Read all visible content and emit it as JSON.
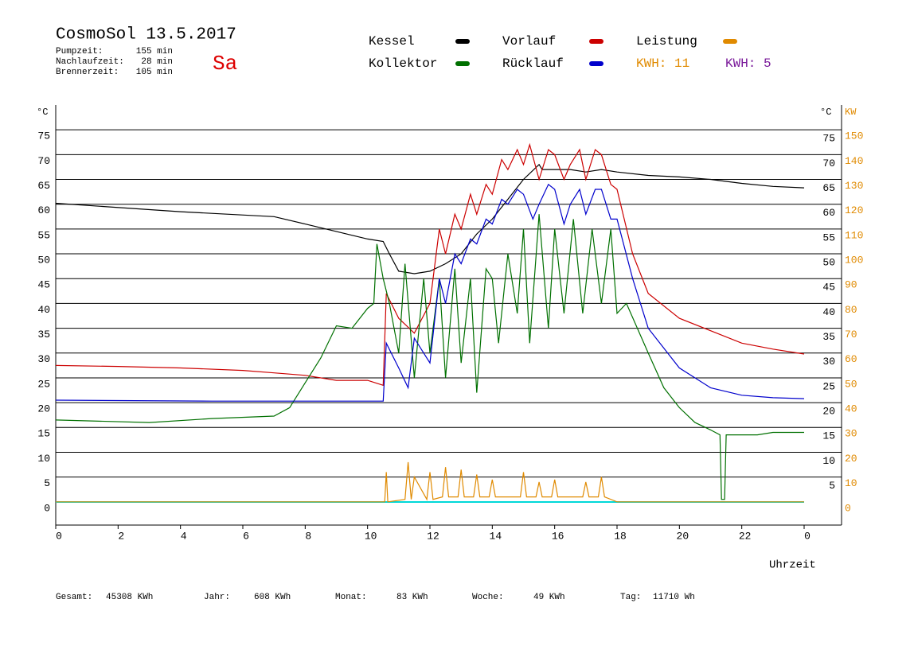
{
  "chart_data": {
    "type": "line",
    "title": "CosmoSol 13.5.2017",
    "weekday": "Sa",
    "info": [
      [
        "Pumpzeit:",
        "155 min"
      ],
      [
        "Nachlaufzeit:",
        "28 min"
      ],
      [
        "Brennerzeit:",
        "105 min"
      ]
    ],
    "ylabel": "°C",
    "ylabel_right": "°C",
    "y2label": "KW",
    "xlabel": "Uhrzeit",
    "kwh_labels": [
      {
        "text": "KWH: 11",
        "color": "#e08a00"
      },
      {
        "text": "KWH: 5",
        "color": "#7a1a9a"
      }
    ],
    "footer": [
      [
        "Gesamt:",
        "45308 KWh"
      ],
      [
        "Jahr:",
        "608 KWh"
      ],
      [
        "Monat:",
        "83 KWh"
      ],
      [
        "Woche:",
        "49 KWh"
      ],
      [
        "Tag:",
        "11710 Wh"
      ]
    ],
    "xlim": [
      0,
      24
    ],
    "xticks": [
      0,
      2,
      4,
      6,
      8,
      10,
      12,
      14,
      16,
      18,
      20,
      22,
      {
        "value": 24,
        "label": "0"
      }
    ],
    "ylim": [
      -5,
      80
    ],
    "yticks": [
      0,
      5,
      10,
      15,
      20,
      25,
      30,
      35,
      40,
      45,
      50,
      55,
      60,
      65,
      70,
      75
    ],
    "yticks_right": [
      5,
      10,
      15,
      20,
      25,
      30,
      35,
      40,
      45,
      50,
      55,
      60,
      65,
      70,
      75
    ],
    "y2lim": [
      -10,
      160
    ],
    "y2ticks": [
      0,
      10,
      20,
      30,
      40,
      50,
      60,
      70,
      80,
      90,
      100,
      110,
      120,
      130,
      140,
      150
    ],
    "grid": true,
    "series": [
      {
        "name": "Kessel",
        "color": "#000000",
        "x": [
          0,
          4,
          7,
          8,
          10,
          10.5,
          10.7,
          11,
          11.5,
          12,
          12.5,
          13,
          13.5,
          14,
          14.5,
          15,
          15.5,
          15.6,
          16,
          16.5,
          17,
          17.5,
          18,
          19,
          20,
          21,
          22,
          23,
          24
        ],
        "values": [
          60.2,
          58.5,
          57.5,
          56,
          53,
          52.5,
          50,
          46.5,
          46,
          46.5,
          48,
          50,
          54,
          57,
          61,
          65,
          68,
          67,
          67,
          67,
          66.5,
          67,
          66.5,
          65.8,
          65.5,
          65,
          64.2,
          63.6,
          63.3
        ]
      },
      {
        "name": "Vorlauf",
        "color": "#cc0000",
        "x": [
          0,
          2,
          4,
          6,
          7,
          8,
          9,
          10,
          10.5,
          10.6,
          11,
          11.5,
          12,
          12.3,
          12.5,
          12.8,
          13,
          13.3,
          13.5,
          13.8,
          14,
          14.3,
          14.5,
          14.8,
          15,
          15.2,
          15.5,
          15.8,
          16,
          16.3,
          16.5,
          16.8,
          17,
          17.3,
          17.5,
          17.8,
          18,
          18.5,
          19,
          20,
          21,
          22,
          23,
          24
        ],
        "values": [
          27.5,
          27.3,
          27,
          26.5,
          26,
          25.5,
          24.5,
          24.5,
          23.5,
          42,
          37,
          34,
          40,
          55,
          50,
          58,
          55,
          62,
          58,
          64,
          62,
          69,
          67,
          71,
          68,
          72,
          65,
          71,
          70,
          65,
          68,
          71,
          65,
          71,
          70,
          64,
          63,
          50,
          42,
          37,
          34.5,
          32,
          30.8,
          29.8
        ]
      },
      {
        "name": "Leistung",
        "color": "#e08a00",
        "axis": "y2",
        "x": [
          0,
          10.55,
          10.6,
          10.65,
          11.2,
          11.3,
          11.4,
          11.5,
          11.9,
          12,
          12.1,
          12.4,
          12.5,
          12.6,
          12.9,
          13,
          13.1,
          13.4,
          13.5,
          13.6,
          13.9,
          14,
          14.1,
          14.9,
          15,
          15.1,
          15.4,
          15.5,
          15.6,
          15.9,
          16,
          16.1,
          16.9,
          17,
          17.1,
          17.4,
          17.5,
          17.6,
          18,
          24
        ],
        "values": [
          0,
          0,
          12,
          0,
          1,
          16,
          1,
          10,
          1,
          12,
          1,
          2,
          14,
          2,
          2,
          13,
          2,
          2,
          11,
          2,
          2,
          9,
          2,
          2,
          12,
          2,
          2,
          8,
          2,
          2,
          9,
          2,
          2,
          8,
          2,
          2,
          10,
          2,
          0,
          0
        ]
      },
      {
        "name": "Kollektor",
        "color": "#007000",
        "x": [
          0,
          3,
          5,
          7,
          7.5,
          8,
          8.5,
          9,
          9.5,
          10,
          10.2,
          10.3,
          10.5,
          10.7,
          11,
          11.2,
          11.5,
          11.8,
          12,
          12.3,
          12.5,
          12.8,
          13,
          13.3,
          13.5,
          13.8,
          14,
          14.2,
          14.5,
          14.8,
          15,
          15.2,
          15.5,
          15.8,
          16,
          16.3,
          16.6,
          16.9,
          17.2,
          17.5,
          17.8,
          18,
          18.3,
          19,
          19.5,
          20,
          20.5,
          21,
          21.3,
          21.35,
          21.45,
          21.5,
          22,
          22.5,
          23,
          24
        ],
        "values": [
          16.5,
          16,
          16.8,
          17.3,
          19,
          24,
          29,
          35.5,
          35,
          39,
          40,
          52,
          45,
          40,
          30,
          48,
          25,
          45,
          30,
          45,
          25,
          47,
          28,
          45,
          22,
          47,
          45,
          32,
          50,
          38,
          55,
          32,
          58,
          35,
          55,
          38,
          57,
          38,
          55,
          40,
          55,
          38,
          40,
          30,
          23,
          19,
          16,
          14.5,
          13.5,
          0.5,
          0.5,
          13.5,
          13.5,
          13.5,
          14,
          14
        ]
      },
      {
        "name": "Rücklauf",
        "color": "#0000cc",
        "x": [
          0,
          5,
          10.5,
          10.6,
          11,
          11.3,
          11.5,
          12,
          12.3,
          12.5,
          12.8,
          13,
          13.3,
          13.5,
          13.8,
          14,
          14.3,
          14.5,
          14.8,
          15,
          15.3,
          15.5,
          15.8,
          16,
          16.3,
          16.5,
          16.8,
          17,
          17.3,
          17.5,
          17.8,
          18,
          18.5,
          19,
          20,
          21,
          22,
          23,
          24
        ],
        "values": [
          20.5,
          20.3,
          20.3,
          32,
          27,
          23,
          33,
          28,
          45,
          40,
          50,
          48,
          53,
          52,
          57,
          56,
          61,
          60,
          63,
          62,
          57,
          60,
          64,
          63,
          56,
          60,
          63,
          58,
          63,
          63,
          57,
          57,
          45,
          35,
          27,
          23,
          21.5,
          21,
          20.8
        ]
      }
    ]
  }
}
